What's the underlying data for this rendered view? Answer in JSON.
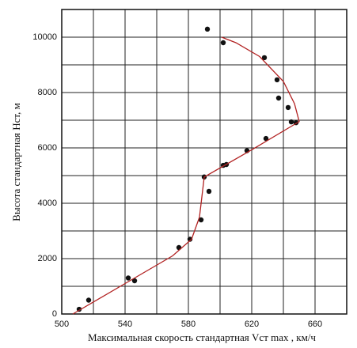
{
  "chart_data": {
    "type": "scatter",
    "x_label": "Максимальная скорость стандартная Vст max , км/ч",
    "y_label": "Высота стандартная Нст, м",
    "xlim": [
      500,
      680
    ],
    "ylim": [
      0,
      11000
    ],
    "xticks": [
      500,
      540,
      580,
      620,
      660
    ],
    "yticks": [
      0,
      2000,
      4000,
      6000,
      8000,
      10000
    ],
    "xgrid": [
      500,
      520,
      540,
      560,
      580,
      600,
      620,
      640,
      660,
      680
    ],
    "ygrid": [
      0,
      1000,
      2000,
      3000,
      4000,
      5000,
      6000,
      7000,
      8000,
      9000,
      10000,
      11000
    ],
    "grid": true,
    "series": [
      {
        "type": "scatter",
        "color": "#111111",
        "x": [
          511,
          517,
          542,
          546,
          574,
          581,
          588,
          590,
          593,
          592,
          602,
          602,
          604,
          617,
          629,
          628,
          636,
          637,
          643,
          645,
          648
        ],
        "values": [
          170,
          500,
          1300,
          1200,
          2400,
          2700,
          3400,
          4950,
          4430,
          10290,
          9800,
          5370,
          5400,
          5900,
          6340,
          9260,
          8460,
          7800,
          7460,
          6940,
          6910
        ]
      },
      {
        "type": "line",
        "color": "#b22222",
        "x": [
          507,
          540,
          570,
          582,
          587,
          590,
          620,
          650,
          647,
          640,
          625,
          610,
          601
        ],
        "values": [
          0,
          1100,
          2100,
          2700,
          3500,
          4950,
          5930,
          6950,
          7600,
          8400,
          9300,
          9800,
          10000
        ]
      }
    ]
  }
}
